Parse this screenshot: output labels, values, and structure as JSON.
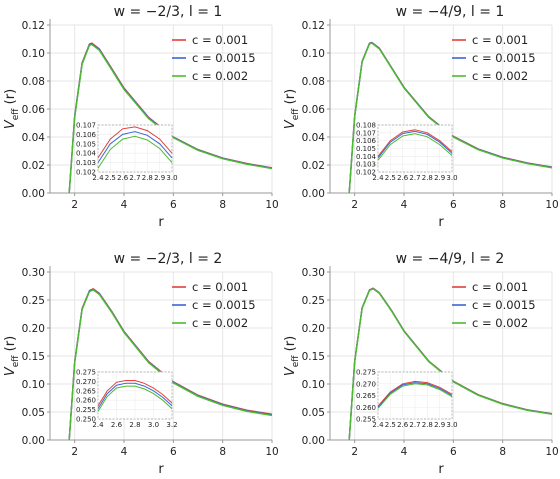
{
  "colors": {
    "c1": "#e0413a",
    "c2": "#3a66d8",
    "c3": "#4cbb2e"
  },
  "legend_labels": [
    "c = 0.001",
    "c = 0.0015",
    "c = 0.002"
  ],
  "chart_data": [
    {
      "type": "line",
      "title": "w = −2/3, l = 1",
      "xlabel": "r",
      "ylabel": "V",
      "ylabel_sub": "eff",
      "ylabel_suffix": " (r)",
      "xlim": [
        1,
        10
      ],
      "ylim": [
        0,
        0.12
      ],
      "xticks": [
        "2",
        "4",
        "6",
        "8",
        "10"
      ],
      "yticks": [
        "0.00",
        "0.02",
        "0.04",
        "0.06",
        "0.08",
        "0.10",
        "0.12"
      ],
      "legend_position": "top-right",
      "series": [
        {
          "name": "c = 0.001",
          "x": [
            1.78,
            2.0,
            2.3,
            2.6,
            2.7,
            3.0,
            3.5,
            4,
            5,
            6,
            7,
            8,
            9,
            10
          ],
          "y": [
            0.0,
            0.055,
            0.093,
            0.1065,
            0.107,
            0.103,
            0.089,
            0.075,
            0.054,
            0.04,
            0.031,
            0.025,
            0.021,
            0.018
          ]
        },
        {
          "name": "c = 0.0015",
          "x": [
            1.78,
            2.0,
            2.3,
            2.6,
            2.7,
            3.0,
            3.5,
            4,
            5,
            6,
            7,
            8,
            9,
            10
          ],
          "y": [
            0.0,
            0.055,
            0.0925,
            0.106,
            0.1065,
            0.1025,
            0.0885,
            0.0745,
            0.0535,
            0.0398,
            0.0308,
            0.0248,
            0.0208,
            0.0178
          ]
        },
        {
          "name": "c = 0.002",
          "x": [
            1.78,
            2.0,
            2.3,
            2.6,
            2.7,
            3.0,
            3.5,
            4,
            5,
            6,
            7,
            8,
            9,
            10
          ],
          "y": [
            0.0,
            0.054,
            0.092,
            0.1055,
            0.106,
            0.102,
            0.088,
            0.074,
            0.053,
            0.0395,
            0.0305,
            0.0245,
            0.0205,
            0.0175
          ]
        }
      ],
      "inset": {
        "xlim": [
          2.4,
          3.0
        ],
        "ylim": [
          0.102,
          0.107
        ],
        "xticks": [
          "2.4",
          "2.5",
          "2.6",
          "2.7",
          "2.8",
          "2.9",
          "3.0"
        ],
        "yticks": [
          "0.102",
          "0.103",
          "0.104",
          "0.105",
          "0.106",
          "0.107"
        ],
        "series": [
          {
            "x": [
              2.4,
              2.5,
              2.6,
              2.7,
              2.8,
              2.9,
              3.0
            ],
            "y": [
              0.1035,
              0.1055,
              0.1066,
              0.1068,
              0.1064,
              0.1055,
              0.104
            ]
          },
          {
            "x": [
              2.4,
              2.5,
              2.6,
              2.7,
              2.8,
              2.9,
              3.0
            ],
            "y": [
              0.103,
              0.105,
              0.106,
              0.1063,
              0.1059,
              0.105,
              0.1035
            ]
          },
          {
            "x": [
              2.4,
              2.5,
              2.6,
              2.7,
              2.8,
              2.9,
              3.0
            ],
            "y": [
              0.1024,
              0.1044,
              0.1055,
              0.1058,
              0.1054,
              0.1045,
              0.103
            ]
          }
        ]
      }
    },
    {
      "type": "line",
      "title": "w = −4/9, l = 1",
      "xlabel": "r",
      "ylabel": "V",
      "ylabel_sub": "eff",
      "ylabel_suffix": " (r)",
      "xlim": [
        1,
        10
      ],
      "ylim": [
        0,
        0.12
      ],
      "xticks": [
        "2",
        "4",
        "6",
        "8",
        "10"
      ],
      "yticks": [
        "0.00",
        "0.02",
        "0.04",
        "0.06",
        "0.08",
        "0.10",
        "0.12"
      ],
      "legend_position": "top-right",
      "series": [
        {
          "name": "c = 0.001",
          "x": [
            1.78,
            2.0,
            2.3,
            2.6,
            2.7,
            3.0,
            3.5,
            4,
            5,
            6,
            7,
            8,
            9,
            10
          ],
          "y": [
            0.0,
            0.055,
            0.094,
            0.107,
            0.1075,
            0.1035,
            0.0895,
            0.0755,
            0.0545,
            0.0405,
            0.0315,
            0.0255,
            0.0215,
            0.0185
          ]
        },
        {
          "name": "c = 0.0015",
          "x": [
            1.78,
            2.0,
            2.3,
            2.6,
            2.7,
            3.0,
            3.5,
            4,
            5,
            6,
            7,
            8,
            9,
            10
          ],
          "y": [
            0.0,
            0.055,
            0.0938,
            0.1068,
            0.1073,
            0.1033,
            0.0893,
            0.0753,
            0.0543,
            0.0403,
            0.0313,
            0.0253,
            0.0213,
            0.0183
          ]
        },
        {
          "name": "c = 0.002",
          "x": [
            1.78,
            2.0,
            2.3,
            2.6,
            2.7,
            3.0,
            3.5,
            4,
            5,
            6,
            7,
            8,
            9,
            10
          ],
          "y": [
            0.0,
            0.0548,
            0.0935,
            0.1065,
            0.107,
            0.103,
            0.089,
            0.075,
            0.054,
            0.04,
            0.031,
            0.025,
            0.021,
            0.018
          ]
        }
      ],
      "inset": {
        "xlim": [
          2.4,
          3.0
        ],
        "ylim": [
          0.102,
          0.108
        ],
        "xticks": [
          "2.4",
          "2.5",
          "2.6",
          "2.7",
          "2.8",
          "2.9",
          "3.0"
        ],
        "yticks": [
          "0.102",
          "0.103",
          "0.104",
          "0.105",
          "0.106",
          "0.107",
          "0.108"
        ],
        "series": [
          {
            "x": [
              2.4,
              2.5,
              2.6,
              2.7,
              2.8,
              2.9,
              3.0
            ],
            "y": [
              0.104,
              0.106,
              0.1071,
              0.1074,
              0.107,
              0.106,
              0.1046
            ]
          },
          {
            "x": [
              2.4,
              2.5,
              2.6,
              2.7,
              2.8,
              2.9,
              3.0
            ],
            "y": [
              0.1038,
              0.1058,
              0.1069,
              0.1072,
              0.1068,
              0.1058,
              0.1044
            ]
          },
          {
            "x": [
              2.4,
              2.5,
              2.6,
              2.7,
              2.8,
              2.9,
              3.0
            ],
            "y": [
              0.1035,
              0.1055,
              0.1066,
              0.1069,
              0.1065,
              0.1055,
              0.1041
            ]
          }
        ]
      }
    },
    {
      "type": "line",
      "title": "w = −2/3, l = 2",
      "xlabel": "r",
      "ylabel": "V",
      "ylabel_sub": "eff",
      "ylabel_suffix": " (r)",
      "xlim": [
        1,
        10
      ],
      "ylim": [
        0,
        0.3
      ],
      "xticks": [
        "2",
        "4",
        "6",
        "8",
        "10"
      ],
      "yticks": [
        "0.00",
        "0.05",
        "0.10",
        "0.15",
        "0.20",
        "0.25",
        "0.30"
      ],
      "legend_position": "top-right",
      "series": [
        {
          "name": "c = 0.001",
          "x": [
            1.78,
            2.0,
            2.3,
            2.6,
            2.75,
            3.0,
            3.5,
            4,
            5,
            6,
            7,
            8,
            9,
            10
          ],
          "y": [
            0.0,
            0.14,
            0.235,
            0.267,
            0.27,
            0.262,
            0.23,
            0.194,
            0.14,
            0.104,
            0.08,
            0.064,
            0.053,
            0.046
          ]
        },
        {
          "name": "c = 0.0015",
          "x": [
            1.78,
            2.0,
            2.3,
            2.6,
            2.75,
            3.0,
            3.5,
            4,
            5,
            6,
            7,
            8,
            9,
            10
          ],
          "y": [
            0.0,
            0.139,
            0.234,
            0.266,
            0.269,
            0.261,
            0.229,
            0.193,
            0.139,
            0.103,
            0.079,
            0.063,
            0.052,
            0.045
          ]
        },
        {
          "name": "c = 0.002",
          "x": [
            1.78,
            2.0,
            2.3,
            2.6,
            2.75,
            3.0,
            3.5,
            4,
            5,
            6,
            7,
            8,
            9,
            10
          ],
          "y": [
            0.0,
            0.138,
            0.233,
            0.265,
            0.268,
            0.26,
            0.228,
            0.192,
            0.138,
            0.102,
            0.078,
            0.062,
            0.051,
            0.044
          ]
        }
      ],
      "inset": {
        "xlim": [
          2.4,
          3.2
        ],
        "ylim": [
          0.25,
          0.275
        ],
        "xticks": [
          "2.4",
          "2.6",
          "2.8",
          "3.0",
          "3.2"
        ],
        "yticks": [
          "0.250",
          "0.255",
          "0.260",
          "0.265",
          "0.270",
          "0.275"
        ],
        "series": [
          {
            "x": [
              2.4,
              2.5,
              2.6,
              2.7,
              2.8,
              2.9,
              3.0,
              3.1,
              3.2
            ],
            "y": [
              0.257,
              0.265,
              0.2695,
              0.2705,
              0.2705,
              0.269,
              0.2665,
              0.263,
              0.2585
            ]
          },
          {
            "x": [
              2.4,
              2.5,
              2.6,
              2.7,
              2.8,
              2.9,
              3.0,
              3.1,
              3.2
            ],
            "y": [
              0.2555,
              0.2635,
              0.268,
              0.269,
              0.269,
              0.2675,
              0.265,
              0.2615,
              0.257
            ]
          },
          {
            "x": [
              2.4,
              2.5,
              2.6,
              2.7,
              2.8,
              2.9,
              3.0,
              3.1,
              3.2
            ],
            "y": [
              0.254,
              0.262,
              0.2665,
              0.2675,
              0.2675,
              0.266,
              0.2635,
              0.26,
              0.2555
            ]
          }
        ]
      }
    },
    {
      "type": "line",
      "title": "w = −4/9, l = 2",
      "xlabel": "r",
      "ylabel": "V",
      "ylabel_sub": "eff",
      "ylabel_suffix": " (r)",
      "xlim": [
        1,
        10
      ],
      "ylim": [
        0,
        0.3
      ],
      "xticks": [
        "2",
        "4",
        "6",
        "8",
        "10"
      ],
      "yticks": [
        "0.00",
        "0.05",
        "0.10",
        "0.15",
        "0.20",
        "0.25",
        "0.30"
      ],
      "legend_position": "top-right",
      "series": [
        {
          "name": "c = 0.001",
          "x": [
            1.78,
            2.0,
            2.3,
            2.6,
            2.75,
            3.0,
            3.5,
            4,
            5,
            6,
            7,
            8,
            9,
            10
          ],
          "y": [
            0.0,
            0.141,
            0.236,
            0.268,
            0.271,
            0.263,
            0.231,
            0.195,
            0.141,
            0.105,
            0.081,
            0.065,
            0.054,
            0.047
          ]
        },
        {
          "name": "c = 0.0015",
          "x": [
            1.78,
            2.0,
            2.3,
            2.6,
            2.75,
            3.0,
            3.5,
            4,
            5,
            6,
            7,
            8,
            9,
            10
          ],
          "y": [
            0.0,
            0.1405,
            0.2355,
            0.2675,
            0.2705,
            0.2625,
            0.2305,
            0.1945,
            0.1405,
            0.1045,
            0.0805,
            0.0645,
            0.0535,
            0.0465
          ]
        },
        {
          "name": "c = 0.002",
          "x": [
            1.78,
            2.0,
            2.3,
            2.6,
            2.75,
            3.0,
            3.5,
            4,
            5,
            6,
            7,
            8,
            9,
            10
          ],
          "y": [
            0.0,
            0.14,
            0.235,
            0.267,
            0.27,
            0.262,
            0.23,
            0.194,
            0.14,
            0.104,
            0.08,
            0.064,
            0.053,
            0.046
          ]
        }
      ],
      "inset": {
        "xlim": [
          2.4,
          3.0
        ],
        "ylim": [
          0.255,
          0.275
        ],
        "xticks": [
          "2.4",
          "2.5",
          "2.6",
          "2.7",
          "2.8",
          "2.9",
          "3.0"
        ],
        "yticks": [
          "0.255",
          "0.260",
          "0.265",
          "0.270",
          "0.275"
        ],
        "series": [
          {
            "x": [
              2.4,
              2.5,
              2.6,
              2.7,
              2.8,
              2.9,
              3.0
            ],
            "y": [
              0.2605,
              0.2665,
              0.27,
              0.271,
              0.2705,
              0.2685,
              0.2655
            ]
          },
          {
            "x": [
              2.4,
              2.5,
              2.6,
              2.7,
              2.8,
              2.9,
              3.0
            ],
            "y": [
              0.26,
              0.266,
              0.2695,
              0.2705,
              0.27,
              0.268,
              0.265
            ]
          },
          {
            "x": [
              2.4,
              2.5,
              2.6,
              2.7,
              2.8,
              2.9,
              3.0
            ],
            "y": [
              0.2595,
              0.2655,
              0.269,
              0.27,
              0.2695,
              0.2675,
              0.2645
            ]
          }
        ]
      }
    }
  ]
}
